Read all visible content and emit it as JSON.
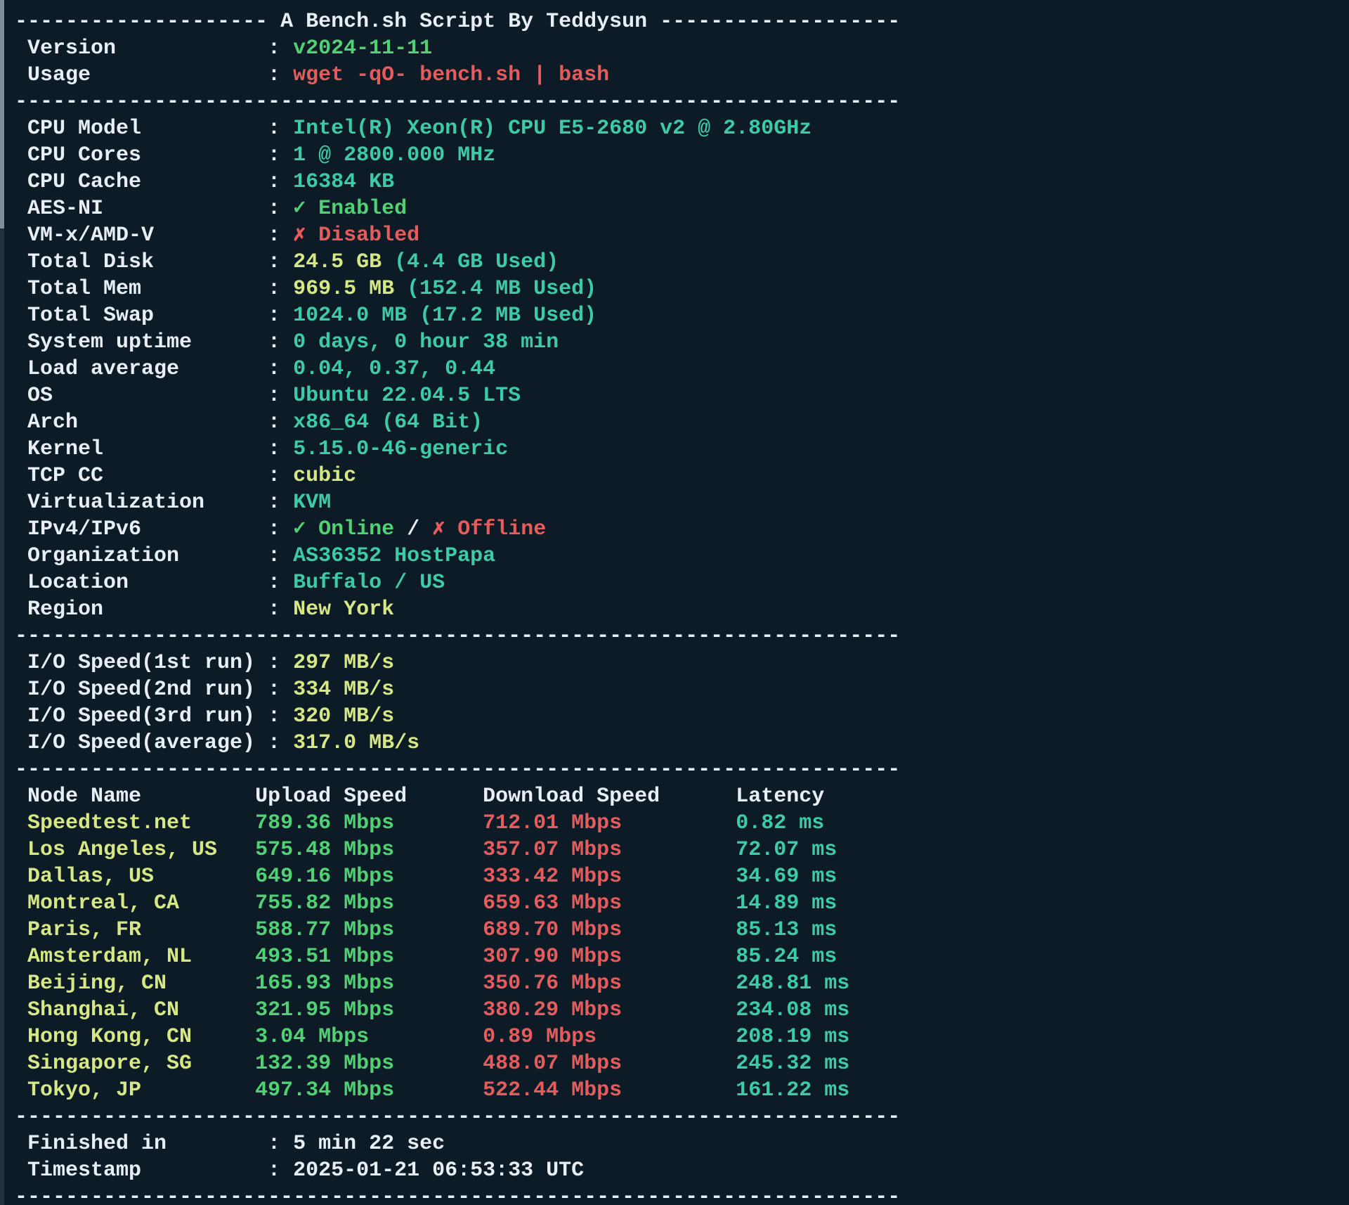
{
  "app": {
    "name": "terminal-bench-sh-output",
    "title": "A Bench.sh Script By Teddysun"
  },
  "palette": {
    "background": "#0c1b26",
    "foreground": "#e8eef4",
    "teal": "#3bcba7",
    "green": "#50d173",
    "red": "#e65c5c",
    "yellow": "#d7e783",
    "scrollbar_thumb": "#7f8e9b"
  },
  "terminal": {
    "lines": [
      [
        {
          "t": "-------------------- ",
          "c": "white"
        },
        {
          "t": "A Bench.sh Script By Teddysun",
          "c": "white"
        },
        {
          "t": " -------------------",
          "c": "white"
        }
      ],
      [
        {
          "t": " Version            : ",
          "c": "white"
        },
        {
          "t": "v2024-11-11",
          "c": "green"
        }
      ],
      [
        {
          "t": " Usage              : ",
          "c": "white"
        },
        {
          "t": "wget -qO- bench.sh | bash",
          "c": "red"
        }
      ],
      [
        {
          "t": "----------------------------------------------------------------------",
          "c": "white"
        }
      ],
      [
        {
          "t": " CPU Model          : ",
          "c": "white"
        },
        {
          "t": "Intel(R) Xeon(R) CPU E5-2680 v2 @ 2.80GHz",
          "c": "teal"
        }
      ],
      [
        {
          "t": " CPU Cores          : ",
          "c": "white"
        },
        {
          "t": "1 @ 2800.000 MHz",
          "c": "teal"
        }
      ],
      [
        {
          "t": " CPU Cache          : ",
          "c": "white"
        },
        {
          "t": "16384 KB",
          "c": "teal"
        }
      ],
      [
        {
          "t": " AES-NI             : ",
          "c": "white"
        },
        {
          "t": "✓ Enabled",
          "c": "green"
        }
      ],
      [
        {
          "t": " VM-x/AMD-V         : ",
          "c": "white"
        },
        {
          "t": "✗ Disabled",
          "c": "red"
        }
      ],
      [
        {
          "t": " Total Disk         : ",
          "c": "white"
        },
        {
          "t": "24.5 GB",
          "c": "yellow"
        },
        {
          "t": " (4.4 GB Used)",
          "c": "teal"
        }
      ],
      [
        {
          "t": " Total Mem          : ",
          "c": "white"
        },
        {
          "t": "969.5 MB",
          "c": "yellow"
        },
        {
          "t": " (152.4 MB Used)",
          "c": "teal"
        }
      ],
      [
        {
          "t": " Total Swap         : ",
          "c": "white"
        },
        {
          "t": "1024.0 MB (17.2 MB Used)",
          "c": "teal"
        }
      ],
      [
        {
          "t": " System uptime      : ",
          "c": "white"
        },
        {
          "t": "0 days, 0 hour 38 min",
          "c": "teal"
        }
      ],
      [
        {
          "t": " Load average       : ",
          "c": "white"
        },
        {
          "t": "0.04, 0.37, 0.44",
          "c": "teal"
        }
      ],
      [
        {
          "t": " OS                 : ",
          "c": "white"
        },
        {
          "t": "Ubuntu 22.04.5 LTS",
          "c": "teal"
        }
      ],
      [
        {
          "t": " Arch               : ",
          "c": "white"
        },
        {
          "t": "x86_64 (64 Bit)",
          "c": "teal"
        }
      ],
      [
        {
          "t": " Kernel             : ",
          "c": "white"
        },
        {
          "t": "5.15.0-46-generic",
          "c": "teal"
        }
      ],
      [
        {
          "t": " TCP CC             : ",
          "c": "white"
        },
        {
          "t": "cubic",
          "c": "yellow"
        }
      ],
      [
        {
          "t": " Virtualization     : ",
          "c": "white"
        },
        {
          "t": "KVM",
          "c": "teal"
        }
      ],
      [
        {
          "t": " IPv4/IPv6          : ",
          "c": "white"
        },
        {
          "t": "✓ Online",
          "c": "green"
        },
        {
          "t": " / ",
          "c": "white"
        },
        {
          "t": "✗ Offline",
          "c": "red"
        }
      ],
      [
        {
          "t": " Organization       : ",
          "c": "white"
        },
        {
          "t": "AS36352 HostPapa",
          "c": "teal"
        }
      ],
      [
        {
          "t": " Location           : ",
          "c": "white"
        },
        {
          "t": "Buffalo / US",
          "c": "teal"
        }
      ],
      [
        {
          "t": " Region             : ",
          "c": "white"
        },
        {
          "t": "New York",
          "c": "yellow"
        }
      ],
      [
        {
          "t": "----------------------------------------------------------------------",
          "c": "white"
        }
      ],
      [
        {
          "t": " I/O Speed(1st run) : ",
          "c": "white"
        },
        {
          "t": "297 MB/s",
          "c": "yellow"
        }
      ],
      [
        {
          "t": " I/O Speed(2nd run) : ",
          "c": "white"
        },
        {
          "t": "334 MB/s",
          "c": "yellow"
        }
      ],
      [
        {
          "t": " I/O Speed(3rd run) : ",
          "c": "white"
        },
        {
          "t": "320 MB/s",
          "c": "yellow"
        }
      ],
      [
        {
          "t": " I/O Speed(average) : ",
          "c": "white"
        },
        {
          "t": "317.0 MB/s",
          "c": "yellow"
        }
      ],
      [
        {
          "t": "----------------------------------------------------------------------",
          "c": "white"
        }
      ],
      [
        {
          "t": " Node Name         ",
          "c": "white"
        },
        {
          "t": "Upload Speed      ",
          "c": "white"
        },
        {
          "t": "Download Speed      ",
          "c": "white"
        },
        {
          "t": "Latency",
          "c": "white"
        }
      ],
      [
        {
          "t": " Speedtest.net     ",
          "c": "yellow"
        },
        {
          "t": "789.36 Mbps       ",
          "c": "green"
        },
        {
          "t": "712.01 Mbps         ",
          "c": "red"
        },
        {
          "t": "0.82 ms",
          "c": "teal"
        }
      ],
      [
        {
          "t": " Los Angeles, US   ",
          "c": "yellow"
        },
        {
          "t": "575.48 Mbps       ",
          "c": "green"
        },
        {
          "t": "357.07 Mbps         ",
          "c": "red"
        },
        {
          "t": "72.07 ms",
          "c": "teal"
        }
      ],
      [
        {
          "t": " Dallas, US        ",
          "c": "yellow"
        },
        {
          "t": "649.16 Mbps       ",
          "c": "green"
        },
        {
          "t": "333.42 Mbps         ",
          "c": "red"
        },
        {
          "t": "34.69 ms",
          "c": "teal"
        }
      ],
      [
        {
          "t": " Montreal, CA      ",
          "c": "yellow"
        },
        {
          "t": "755.82 Mbps       ",
          "c": "green"
        },
        {
          "t": "659.63 Mbps         ",
          "c": "red"
        },
        {
          "t": "14.89 ms",
          "c": "teal"
        }
      ],
      [
        {
          "t": " Paris, FR         ",
          "c": "yellow"
        },
        {
          "t": "588.77 Mbps       ",
          "c": "green"
        },
        {
          "t": "689.70 Mbps         ",
          "c": "red"
        },
        {
          "t": "85.13 ms",
          "c": "teal"
        }
      ],
      [
        {
          "t": " Amsterdam, NL     ",
          "c": "yellow"
        },
        {
          "t": "493.51 Mbps       ",
          "c": "green"
        },
        {
          "t": "307.90 Mbps         ",
          "c": "red"
        },
        {
          "t": "85.24 ms",
          "c": "teal"
        }
      ],
      [
        {
          "t": " Beijing, CN       ",
          "c": "yellow"
        },
        {
          "t": "165.93 Mbps       ",
          "c": "green"
        },
        {
          "t": "350.76 Mbps         ",
          "c": "red"
        },
        {
          "t": "248.81 ms",
          "c": "teal"
        }
      ],
      [
        {
          "t": " Shanghai, CN      ",
          "c": "yellow"
        },
        {
          "t": "321.95 Mbps       ",
          "c": "green"
        },
        {
          "t": "380.29 Mbps         ",
          "c": "red"
        },
        {
          "t": "234.08 ms",
          "c": "teal"
        }
      ],
      [
        {
          "t": " Hong Kong, CN     ",
          "c": "yellow"
        },
        {
          "t": "3.04 Mbps         ",
          "c": "green"
        },
        {
          "t": "0.89 Mbps           ",
          "c": "red"
        },
        {
          "t": "208.19 ms",
          "c": "teal"
        }
      ],
      [
        {
          "t": " Singapore, SG     ",
          "c": "yellow"
        },
        {
          "t": "132.39 Mbps       ",
          "c": "green"
        },
        {
          "t": "488.07 Mbps         ",
          "c": "red"
        },
        {
          "t": "245.32 ms",
          "c": "teal"
        }
      ],
      [
        {
          "t": " Tokyo, JP         ",
          "c": "yellow"
        },
        {
          "t": "497.34 Mbps       ",
          "c": "green"
        },
        {
          "t": "522.44 Mbps         ",
          "c": "red"
        },
        {
          "t": "161.22 ms",
          "c": "teal"
        }
      ],
      [
        {
          "t": "----------------------------------------------------------------------",
          "c": "white"
        }
      ],
      [
        {
          "t": " Finished in        : ",
          "c": "white"
        },
        {
          "t": "5 min 22 sec",
          "c": "white"
        }
      ],
      [
        {
          "t": " Timestamp          : ",
          "c": "white"
        },
        {
          "t": "2025-01-21 06:53:33 UTC",
          "c": "white"
        }
      ],
      [
        {
          "t": "----------------------------------------------------------------------",
          "c": "white"
        }
      ]
    ]
  }
}
